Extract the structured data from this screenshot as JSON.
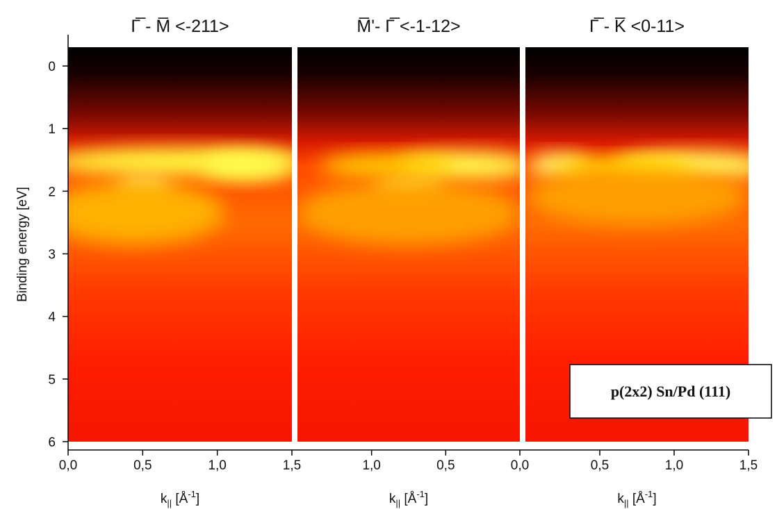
{
  "chart_data": [
    {
      "type": "heatmap",
      "title": "Γ̅ - M̅  <-211>",
      "xlim": [
        0,
        1.5
      ],
      "xticks": [
        {
          "value": 0,
          "label": "0,0"
        },
        {
          "value": 0.5,
          "label": "0,5"
        },
        {
          "value": 1,
          "label": "1,0"
        },
        {
          "value": 1.5,
          "label": "1,5"
        }
      ],
      "xlabel_parts": [
        "k",
        "||",
        " [Å",
        "-1",
        "]"
      ],
      "ylabel": "Binding energy [eV]",
      "ylim": [
        6,
        -0.3
      ],
      "yticks": [
        0,
        1,
        2,
        3,
        4,
        5,
        6
      ]
    },
    {
      "type": "heatmap",
      "title": "M̅'- Γ̅  <-1-12>",
      "xlim": [
        1.5,
        0
      ],
      "xticks": [
        {
          "value": 1,
          "label": "1,0"
        },
        {
          "value": 0.5,
          "label": "0,5"
        },
        {
          "value": 0,
          "label": "0,0"
        }
      ],
      "xlabel_parts": [
        "k",
        "||",
        " [Å",
        "-1",
        "]"
      ]
    },
    {
      "type": "heatmap",
      "title": "Γ̅ - K̅  <0-11>",
      "xlim": [
        0,
        1.5
      ],
      "xticks": [
        {
          "value": 0.5,
          "label": "0,5"
        },
        {
          "value": 1,
          "label": "1,0"
        },
        {
          "value": 1.5,
          "label": "1,5"
        }
      ],
      "xlabel_parts": [
        "k",
        "||",
        " [Å",
        "-1",
        "]"
      ],
      "annotation": "p(2x2) Sn/Pd (111)"
    }
  ]
}
